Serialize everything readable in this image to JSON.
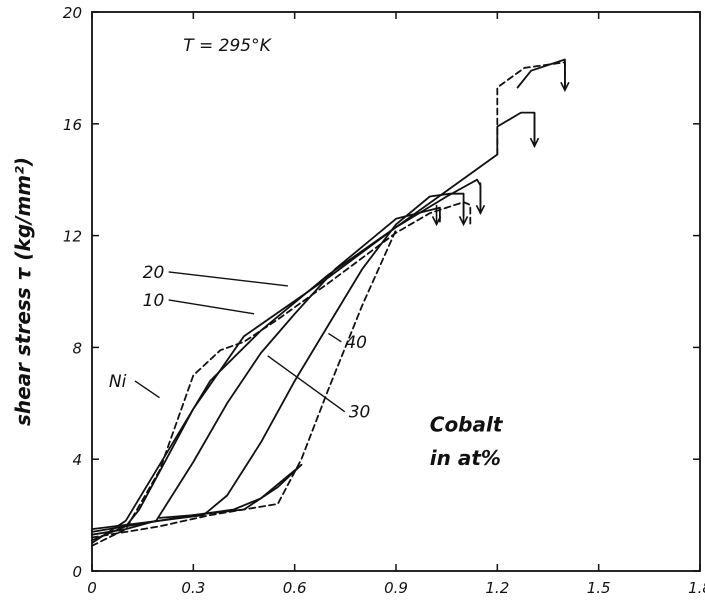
{
  "chart_data": {
    "type": "line",
    "title": "",
    "condition": "T = 295°K",
    "xlabel": "",
    "ylabel": "shear stress τ   (kg/mm²)",
    "xlim": [
      0,
      1.8
    ],
    "ylim": [
      0,
      20
    ],
    "x_ticks": [
      "0",
      "0.3",
      "0.6",
      "0.9",
      "1.2",
      "1.5",
      "1.8"
    ],
    "y_ticks": [
      "0",
      "4",
      "8",
      "12",
      "16",
      "20"
    ],
    "x_tick_values": [
      0,
      0.3,
      0.6,
      0.9,
      1.2,
      1.5,
      1.8
    ],
    "y_tick_values": [
      0,
      4,
      8,
      12,
      16,
      20
    ],
    "grid": false,
    "legend_title": [
      "Cobalt",
      "in at%"
    ],
    "series": [
      {
        "name": "Ni",
        "style": "dashed",
        "points": [
          [
            0,
            0.9
          ],
          [
            0.1,
            1.5
          ],
          [
            0.2,
            3.6
          ],
          [
            0.3,
            7.0
          ],
          [
            0.38,
            7.9
          ],
          [
            0.45,
            8.2
          ],
          [
            0.55,
            9.0
          ],
          [
            0.7,
            10.3
          ],
          [
            0.9,
            12.1
          ],
          [
            1.0,
            12.8
          ],
          [
            1.05,
            13.0
          ],
          [
            1.1,
            13.2
          ],
          [
            1.12,
            13.1
          ],
          [
            1.12,
            12.4
          ]
        ]
      },
      {
        "name": "10",
        "points": [
          [
            0,
            1.0
          ],
          [
            0.1,
            1.8
          ],
          [
            0.2,
            3.8
          ],
          [
            0.35,
            6.8
          ],
          [
            0.5,
            8.6
          ],
          [
            0.7,
            10.6
          ],
          [
            0.9,
            12.3
          ],
          [
            1.05,
            13.4
          ],
          [
            1.14,
            14.0
          ],
          [
            1.15,
            13.8
          ],
          [
            1.15,
            12.8
          ]
        ]
      },
      {
        "name": "20",
        "points": [
          [
            0,
            1.1
          ],
          [
            0.1,
            1.6
          ],
          [
            0.14,
            2.2
          ],
          [
            0.3,
            5.8
          ],
          [
            0.45,
            8.4
          ],
          [
            0.7,
            10.5
          ],
          [
            0.9,
            12.3
          ],
          [
            1.05,
            13.6
          ],
          [
            1.2,
            14.9
          ],
          [
            1.2,
            15.9
          ],
          [
            1.27,
            16.4
          ],
          [
            1.31,
            16.4
          ],
          [
            1.31,
            15.2
          ]
        ]
      },
      {
        "name": "30",
        "points": [
          [
            0,
            1.3
          ],
          [
            0.1,
            1.5
          ],
          [
            0.19,
            1.8
          ],
          [
            0.3,
            3.9
          ],
          [
            0.4,
            6.0
          ],
          [
            0.5,
            7.8
          ],
          [
            0.6,
            9.2
          ],
          [
            0.72,
            10.8
          ],
          [
            0.9,
            12.6
          ],
          [
            1.03,
            13.0
          ],
          [
            1.03,
            12.5
          ]
        ]
      },
      {
        "name": "40",
        "points": [
          [
            0,
            1.5
          ],
          [
            0.2,
            1.8
          ],
          [
            0.33,
            2.0
          ],
          [
            0.4,
            2.7
          ],
          [
            0.5,
            4.6
          ],
          [
            0.6,
            6.8
          ],
          [
            0.7,
            8.8
          ],
          [
            0.8,
            10.8
          ],
          [
            0.9,
            12.4
          ],
          [
            1.0,
            13.4
          ],
          [
            1.06,
            13.5
          ],
          [
            1.1,
            13.5
          ],
          [
            1.1,
            12.7
          ]
        ]
      },
      {
        "name": "",
        "style": "dashed",
        "points": [
          [
            0,
            1.2
          ],
          [
            0.2,
            1.6
          ],
          [
            0.35,
            2.0
          ],
          [
            0.55,
            2.4
          ],
          [
            0.62,
            4.0
          ],
          [
            0.7,
            6.5
          ],
          [
            0.8,
            9.5
          ],
          [
            0.9,
            12.2
          ]
        ]
      },
      {
        "name": "",
        "points": [
          [
            0,
            1.4
          ],
          [
            0.3,
            2.0
          ],
          [
            0.45,
            2.2
          ],
          [
            0.55,
            3.0
          ],
          [
            0.62,
            3.8
          ]
        ]
      },
      {
        "name": "",
        "points": [
          [
            0.2,
            1.9
          ],
          [
            0.3,
            2.0
          ],
          [
            0.42,
            2.2
          ],
          [
            0.5,
            2.6
          ],
          [
            0.58,
            3.4
          ],
          [
            0.62,
            3.8
          ]
        ]
      },
      {
        "name": "",
        "style": "dashed",
        "points": [
          [
            1.2,
            14.9
          ],
          [
            1.2,
            17.3
          ],
          [
            1.28,
            18.0
          ],
          [
            1.4,
            18.2
          ],
          [
            1.4,
            17.2
          ]
        ]
      },
      {
        "name": "",
        "points": [
          [
            1.26,
            17.3
          ],
          [
            1.3,
            17.9
          ],
          [
            1.4,
            18.3
          ],
          [
            1.4,
            17.3
          ]
        ]
      }
    ],
    "labels": [
      {
        "text": "20",
        "x": 0.15,
        "y": 10.7,
        "lx": 0.58,
        "ly": 10.2
      },
      {
        "text": "10",
        "x": 0.15,
        "y": 9.7,
        "lx": 0.48,
        "ly": 9.2
      },
      {
        "text": "Ni",
        "x": 0.05,
        "y": 6.8,
        "lx": 0.2,
        "ly": 6.2
      },
      {
        "text": "40",
        "x": 0.75,
        "y": 8.2,
        "lx": 0.7,
        "ly": 8.5
      },
      {
        "text": "30",
        "x": 0.76,
        "y": 5.7,
        "lx": 0.52,
        "ly": 7.7
      }
    ],
    "arrows": [
      {
        "x": 1.02,
        "from": 13.1,
        "to": 12.4
      },
      {
        "x": 1.1,
        "from": 13.2,
        "to": 12.4
      },
      {
        "x": 1.15,
        "from": 13.9,
        "to": 12.8
      },
      {
        "x": 1.31,
        "from": 16.4,
        "to": 15.2
      },
      {
        "x": 1.4,
        "from": 18.2,
        "to": 17.2
      }
    ]
  }
}
